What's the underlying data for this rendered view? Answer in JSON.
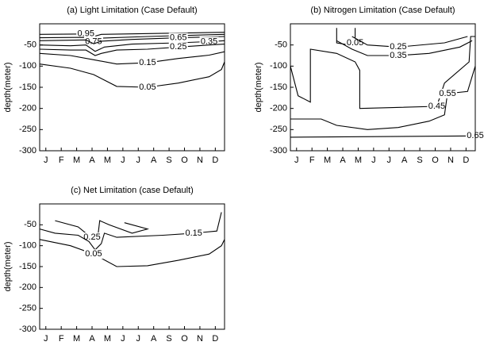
{
  "chart_data": [
    {
      "type": "contour",
      "title": "(a) Light Limitation (Case Default)",
      "y_label": "depth(meter)",
      "categories": [
        "J",
        "F",
        "M",
        "A",
        "M",
        "J",
        "J",
        "A",
        "S",
        "O",
        "N",
        "D"
      ],
      "xlim": [
        0,
        12
      ],
      "ylim": [
        -300,
        0
      ],
      "yticks": [
        -50,
        -100,
        -150,
        -200,
        -250,
        -300
      ],
      "color": "#000000",
      "contours": [
        {
          "level": 0.95,
          "x": [
            0,
            3,
            3.5,
            4,
            12
          ],
          "depth": [
            -25,
            -24,
            -30,
            -25,
            -20
          ]
        },
        {
          "level": 0.75,
          "x": [
            0,
            3,
            3.5,
            4,
            7,
            12
          ],
          "depth": [
            -33,
            -32,
            -42,
            -34,
            -30,
            -25
          ]
        },
        {
          "level": 0.65,
          "x": [
            0,
            3,
            3.5,
            4,
            6,
            9,
            12
          ],
          "depth": [
            -40,
            -38,
            -47,
            -41,
            -37,
            -33,
            -30
          ]
        },
        {
          "level": 0.35,
          "x": [
            0,
            2,
            3,
            3.6,
            4.2,
            6,
            9,
            11,
            12
          ],
          "depth": [
            -50,
            -52,
            -50,
            -65,
            -55,
            -48,
            -45,
            -42,
            -40
          ]
        },
        {
          "level": 0.25,
          "x": [
            0,
            2,
            3,
            3.6,
            4,
            5,
            7,
            9,
            11,
            12
          ],
          "depth": [
            -60,
            -62,
            -62,
            -75,
            -70,
            -62,
            -60,
            -55,
            -50,
            -48
          ]
        },
        {
          "level": 0.15,
          "x": [
            0,
            2,
            3.5,
            5,
            7,
            9,
            11,
            12
          ],
          "depth": [
            -70,
            -75,
            -85,
            -95,
            -92,
            -82,
            -74,
            -66
          ]
        },
        {
          "level": 0.05,
          "x": [
            0,
            2,
            3.5,
            5,
            7,
            9,
            11,
            11.8,
            12
          ],
          "depth": [
            -95,
            -105,
            -120,
            -148,
            -150,
            -140,
            -125,
            -108,
            -90
          ]
        }
      ]
    },
    {
      "type": "contour",
      "title": "(b) Nitrogen Limitation (Case Default)",
      "y_label": "depth(meter)",
      "categories": [
        "J",
        "F",
        "M",
        "A",
        "M",
        "J",
        "J",
        "A",
        "S",
        "O",
        "N",
        "D"
      ],
      "xlim": [
        0,
        12
      ],
      "ylim": [
        -300,
        0
      ],
      "yticks": [
        -50,
        -100,
        -150,
        -200,
        -250,
        -300
      ],
      "color": "#000000",
      "contours": [
        {
          "level": 0.05,
          "x": [
            3,
            3,
            3.8,
            4.2,
            4.2
          ],
          "depth": [
            -10,
            -45,
            -50,
            -45,
            -10
          ]
        },
        {
          "level": 0.25,
          "x": [
            4,
            5,
            7,
            10,
            11.5
          ],
          "depth": [
            -30,
            -50,
            -55,
            -45,
            -30
          ]
        },
        {
          "level": 0.35,
          "x": [
            3,
            4,
            5,
            7,
            9,
            11,
            11.8
          ],
          "depth": [
            -40,
            -60,
            -75,
            -75,
            -70,
            -55,
            -40
          ]
        },
        {
          "level": 0.45,
          "x": [
            0,
            0.5,
            1.3,
            1.3,
            3,
            4.2,
            4.5,
            4.5,
            9.5,
            10,
            11.6,
            11.7,
            12
          ],
          "depth": [
            -100,
            -170,
            -185,
            -60,
            -70,
            -90,
            -110,
            -200,
            -195,
            -140,
            -90,
            -30,
            -30
          ]
        },
        {
          "level": 0.55,
          "x": [
            0,
            2,
            3,
            5,
            7,
            9,
            10,
            10.2,
            11.5,
            12
          ],
          "depth": [
            -225,
            -225,
            -240,
            -250,
            -245,
            -230,
            -215,
            -165,
            -160,
            -100
          ]
        },
        {
          "level": 0.65,
          "x": [
            0,
            12
          ],
          "depth": [
            -268,
            -265
          ]
        }
      ]
    },
    {
      "type": "contour",
      "title": "(c) Net Limitation (case Default)",
      "y_label": "depth(meter)",
      "categories": [
        "J",
        "F",
        "M",
        "A",
        "M",
        "J",
        "J",
        "A",
        "S",
        "O",
        "N",
        "D"
      ],
      "xlim": [
        0,
        12
      ],
      "ylim": [
        -300,
        0
      ],
      "yticks": [
        -50,
        -100,
        -150,
        -200,
        -250,
        -300
      ],
      "color": "#000000",
      "contours": [
        {
          "level": 0.25,
          "x": [
            1,
            2.5,
            3,
            3.4,
            3.8,
            3.9,
            4.5,
            6,
            7,
            5.5
          ],
          "depth": [
            -40,
            -55,
            -70,
            -80,
            -70,
            -40,
            -50,
            -70,
            -60,
            -45
          ]
        },
        {
          "level": 0.15,
          "x": [
            0,
            1,
            2.5,
            3.2,
            3.6,
            4,
            4.2,
            5,
            8,
            10,
            11.5,
            11.8
          ],
          "depth": [
            -60,
            -70,
            -75,
            -90,
            -110,
            -95,
            -70,
            -80,
            -75,
            -70,
            -65,
            -20
          ]
        },
        {
          "level": 0.05,
          "x": [
            0,
            2,
            3.5,
            5,
            7,
            9,
            11,
            11.8,
            12
          ],
          "depth": [
            -85,
            -100,
            -120,
            -150,
            -148,
            -135,
            -120,
            -100,
            -85
          ]
        }
      ]
    }
  ]
}
